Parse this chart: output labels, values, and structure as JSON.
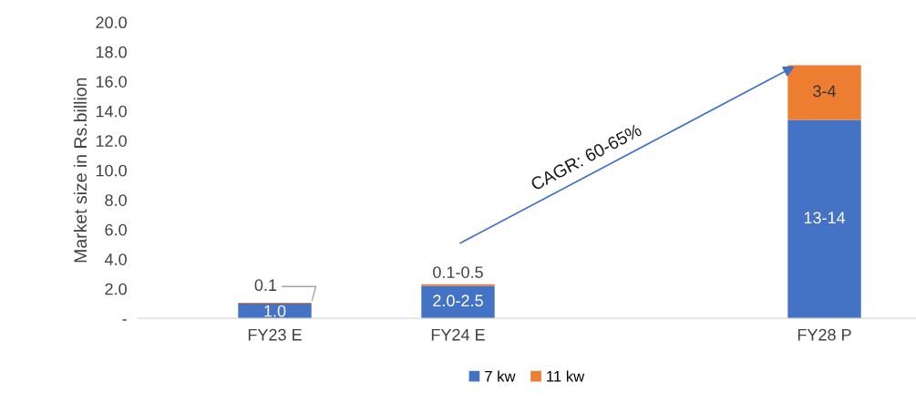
{
  "chart_data": {
    "type": "bar",
    "stacked": true,
    "categories": [
      "FY23 E",
      "FY24 E",
      null,
      "FY28 P"
    ],
    "ylabel": "Market size in Rs.billion",
    "series": [
      {
        "name": "7 kw",
        "color": "#4472c4",
        "values": [
          1.0,
          2.2,
          null,
          13.4
        ],
        "value_labels": [
          "1.0",
          "2.0-2.5",
          null,
          "13-14"
        ]
      },
      {
        "name": "11 kw",
        "color": "#ed7d31",
        "values": [
          0.05,
          0.1,
          null,
          3.7
        ],
        "value_labels": [
          "0.1",
          "0.1-0.5",
          null,
          "3-4"
        ]
      }
    ],
    "ylim": [
      0,
      20
    ],
    "yticks": [
      {
        "value": 0,
        "label": "-"
      },
      {
        "value": 2,
        "label": "2.0"
      },
      {
        "value": 4,
        "label": "4.0"
      },
      {
        "value": 6,
        "label": "6.0"
      },
      {
        "value": 8,
        "label": "8.0"
      },
      {
        "value": 10,
        "label": "10.0"
      },
      {
        "value": 12,
        "label": "12.0"
      },
      {
        "value": 14,
        "label": "14.0"
      },
      {
        "value": 16,
        "label": "16.0"
      },
      {
        "value": 18,
        "label": "18.0"
      },
      {
        "value": 20,
        "label": "20.0"
      }
    ],
    "annotations": [
      "CAGR: 60-65%"
    ],
    "grid": false,
    "legend": "bottom"
  }
}
